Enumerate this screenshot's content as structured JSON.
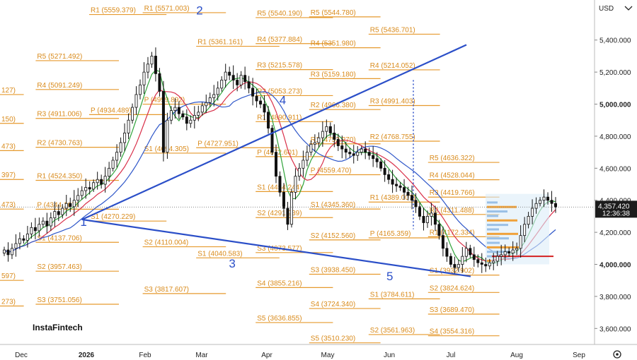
{
  "chart_data": {
    "type": "candlestick",
    "currency": "USD",
    "ylim": [
      3500,
      5650
    ],
    "y_ticks": [
      "3,600.000",
      "3,800.000",
      "4,000.000",
      "4,200.000",
      "4,400.000",
      "4,600.000",
      "4,800.000",
      "5,000.000",
      "5,200.000",
      "5,400.000"
    ],
    "x_ticks": [
      "Dec",
      "2026",
      "Feb",
      "Mar",
      "Apr",
      "May",
      "Jun",
      "Jul",
      "Aug",
      "Sep"
    ],
    "current_price": {
      "value": 4357.42,
      "label": "4,357.420",
      "countdown": "12:36:38"
    },
    "brand": "InstaFintech",
    "pivot_levels": [
      {
        "text": "127)",
        "price": 5060,
        "c0": 0.0,
        "c1": 0.04
      },
      {
        "text": "150)",
        "price": 4880,
        "c0": 0.0,
        "c1": 0.04
      },
      {
        "text": "473)",
        "price": 4710,
        "c0": 0.0,
        "c1": 0.04
      },
      {
        "text": "397)",
        "price": 4530,
        "c0": 0.0,
        "c1": 0.04
      },
      {
        "text": "473)",
        "price": 4345,
        "c0": 0.0,
        "c1": 0.04
      },
      {
        "text": "597)",
        "price": 3900,
        "c0": 0.0,
        "c1": 0.04
      },
      {
        "text": "273)",
        "price": 3740,
        "c0": 0.0,
        "c1": 0.04
      },
      {
        "text": "R5 (5271.492)",
        "price": 5271.492,
        "c0": 0.06,
        "c1": 0.2
      },
      {
        "text": "R4 (5091.249)",
        "price": 5091.249,
        "c0": 0.06,
        "c1": 0.2
      },
      {
        "text": "R3 (4911.006)",
        "price": 4911.006,
        "c0": 0.06,
        "c1": 0.2
      },
      {
        "text": "R2 (4730.763)",
        "price": 4730.763,
        "c0": 0.06,
        "c1": 0.2
      },
      {
        "text": "R1 (4524.350)",
        "price": 4524.35,
        "c0": 0.06,
        "c1": 0.2
      },
      {
        "text": "P (4344.107)",
        "price": 4344.107,
        "c0": 0.06,
        "c1": 0.2
      },
      {
        "text": "S1 (4137.706)",
        "price": 4137.706,
        "c0": 0.06,
        "c1": 0.2
      },
      {
        "text": "S2 (3957.463)",
        "price": 3957.463,
        "c0": 0.06,
        "c1": 0.2
      },
      {
        "text": "S3 (3751.056)",
        "price": 3751.056,
        "c0": 0.06,
        "c1": 0.2
      },
      {
        "text": "R1 (5559.379)",
        "price": 5559.379,
        "c0": 0.15,
        "c1": 0.28
      },
      {
        "text": "P (4934.489)",
        "price": 4934.489,
        "c0": 0.15,
        "c1": 0.28
      },
      {
        "text": "S1 (4270.229)",
        "price": 4270.229,
        "c0": 0.15,
        "c1": 0.28
      },
      {
        "text": "R1 (5571.003)",
        "price": 5571.003,
        "c0": 0.24,
        "c1": 0.38
      },
      {
        "text": "P (4999.892)",
        "price": 4999.892,
        "c0": 0.24,
        "c1": 0.38
      },
      {
        "text": "S1 (4694.305)",
        "price": 4694.305,
        "c0": 0.24,
        "c1": 0.38
      },
      {
        "text": "S2 (4110.004)",
        "price": 4110.004,
        "c0": 0.24,
        "c1": 0.38
      },
      {
        "text": "S3 (3817.607)",
        "price": 3817.607,
        "c0": 0.24,
        "c1": 0.38
      },
      {
        "text": "R1 (5361.161)",
        "price": 5361.161,
        "c0": 0.33,
        "c1": 0.47
      },
      {
        "text": "P (4727.951)",
        "price": 4727.951,
        "c0": 0.33,
        "c1": 0.47
      },
      {
        "text": "S1 (4040.583)",
        "price": 4040.583,
        "c0": 0.33,
        "c1": 0.47
      },
      {
        "text": "R5 (5540.190)",
        "price": 5540.19,
        "c0": 0.43,
        "c1": 0.56
      },
      {
        "text": "R4 (5377.884)",
        "price": 5377.884,
        "c0": 0.43,
        "c1": 0.56
      },
      {
        "text": "R3 (5215.578)",
        "price": 5215.578,
        "c0": 0.43,
        "c1": 0.56
      },
      {
        "text": "R2 (5053.273)",
        "price": 5053.273,
        "c0": 0.43,
        "c1": 0.56
      },
      {
        "text": "R1 (4890.911)",
        "price": 4890.911,
        "c0": 0.43,
        "c1": 0.56
      },
      {
        "text": "P (4672.601)",
        "price": 4672.601,
        "c0": 0.43,
        "c1": 0.56
      },
      {
        "text": "S1 (4454.244)",
        "price": 4454.244,
        "c0": 0.43,
        "c1": 0.56
      },
      {
        "text": "S2 (4291.939)",
        "price": 4291.939,
        "c0": 0.43,
        "c1": 0.56
      },
      {
        "text": "S3 (4073.577)",
        "price": 4073.577,
        "c0": 0.43,
        "c1": 0.56
      },
      {
        "text": "S4 (3855.216)",
        "price": 3855.216,
        "c0": 0.43,
        "c1": 0.56
      },
      {
        "text": "S5 (3636.855)",
        "price": 3636.855,
        "c0": 0.43,
        "c1": 0.56
      },
      {
        "text": "R5 (5544.780)",
        "price": 5544.78,
        "c0": 0.52,
        "c1": 0.64
      },
      {
        "text": "R4 (5351.980)",
        "price": 5351.98,
        "c0": 0.52,
        "c1": 0.64
      },
      {
        "text": "R3 (5159.180)",
        "price": 5159.18,
        "c0": 0.52,
        "c1": 0.64
      },
      {
        "text": "R2 (4966.380)",
        "price": 4966.38,
        "c0": 0.52,
        "c1": 0.64
      },
      {
        "text": "R1 (4752.270)",
        "price": 4752.27,
        "c0": 0.52,
        "c1": 0.64
      },
      {
        "text": "P (4559.470)",
        "price": 4559.47,
        "c0": 0.52,
        "c1": 0.64
      },
      {
        "text": "S1 (4345.360)",
        "price": 4345.36,
        "c0": 0.52,
        "c1": 0.64
      },
      {
        "text": "S2 (4152.560)",
        "price": 4152.56,
        "c0": 0.52,
        "c1": 0.64
      },
      {
        "text": "S3 (3938.450)",
        "price": 3938.45,
        "c0": 0.52,
        "c1": 0.64
      },
      {
        "text": "S4 (3724.340)",
        "price": 3724.34,
        "c0": 0.52,
        "c1": 0.64
      },
      {
        "text": "S5 (3510.230)",
        "price": 3510.23,
        "c0": 0.52,
        "c1": 0.64
      },
      {
        "text": "R5 (5436.701)",
        "price": 5436.701,
        "c0": 0.62,
        "c1": 0.74
      },
      {
        "text": "R4 (5214.052)",
        "price": 5214.052,
        "c0": 0.62,
        "c1": 0.74
      },
      {
        "text": "R3 (4991.403)",
        "price": 4991.403,
        "c0": 0.62,
        "c1": 0.74
      },
      {
        "text": "R2 (4768.755)",
        "price": 4768.755,
        "c0": 0.62,
        "c1": 0.74
      },
      {
        "text": "R1 (4389.007)",
        "price": 4389.007,
        "c0": 0.62,
        "c1": 0.74
      },
      {
        "text": "P (4165.359)",
        "price": 4165.359,
        "c0": 0.62,
        "c1": 0.74
      },
      {
        "text": "S1 (3784.611)",
        "price": 3784.611,
        "c0": 0.62,
        "c1": 0.74
      },
      {
        "text": "S2 (3561.963)",
        "price": 3561.963,
        "c0": 0.62,
        "c1": 0.74
      },
      {
        "text": "R5 (4636.322)",
        "price": 4636.322,
        "c0": 0.72,
        "c1": 0.84
      },
      {
        "text": "R4 (4528.044)",
        "price": 4528.044,
        "c0": 0.72,
        "c1": 0.84
      },
      {
        "text": "R3 (4419.766)",
        "price": 4419.766,
        "c0": 0.72,
        "c1": 0.84
      },
      {
        "text": "R2 (4311.488)",
        "price": 4311.488,
        "c0": 0.72,
        "c1": 0.84
      },
      {
        "text": "R1 (4172.334)",
        "price": 4172.334,
        "c0": 0.72,
        "c1": 0.84
      },
      {
        "text": "S1 (3932.902)",
        "price": 3932.902,
        "c0": 0.72,
        "c1": 0.84
      },
      {
        "text": "S2 (3824.624)",
        "price": 3824.624,
        "c0": 0.72,
        "c1": 0.84
      },
      {
        "text": "S3 (3689.470)",
        "price": 3689.47,
        "c0": 0.72,
        "c1": 0.84
      },
      {
        "text": "S4 (3554.316)",
        "price": 3554.316,
        "c0": 0.72,
        "c1": 0.84
      }
    ],
    "wave_labels": [
      {
        "text": "1",
        "x": 0.135,
        "price": 4240
      },
      {
        "text": "2",
        "x": 0.33,
        "price": 5560
      },
      {
        "text": "3",
        "x": 0.385,
        "price": 3980
      },
      {
        "text": "4",
        "x": 0.47,
        "price": 5000
      },
      {
        "text": "5",
        "x": 0.65,
        "price": 3900
      }
    ],
    "closes": [
      4090,
      4060,
      4100,
      4130,
      4160,
      4150,
      4190,
      4230,
      4210,
      4250,
      4270,
      4240,
      4290,
      4330,
      4310,
      4350,
      4380,
      4360,
      4400,
      4430,
      4460,
      4480,
      4470,
      4510,
      4530,
      4500,
      4550,
      4600,
      4650,
      4700,
      4760,
      4820,
      4900,
      4980,
      5060,
      5120,
      5200,
      5250,
      5300,
      5190,
      5080,
      4700,
      4900,
      4960,
      4980,
      4940,
      4920,
      4880,
      4900,
      4930,
      4950,
      4990,
      5010,
      5040,
      5060,
      5100,
      5150,
      5200,
      5180,
      5150,
      5120,
      5180,
      5140,
      5100,
      5050,
      5020,
      5000,
      4950,
      4850,
      4700,
      4550,
      4450,
      4350,
      4250,
      4450,
      4550,
      4600,
      4650,
      4700,
      4750,
      4760,
      4790,
      4830,
      4860,
      4820,
      4780,
      4740,
      4720,
      4700,
      4690,
      4680,
      4700,
      4720,
      4700,
      4680,
      4660,
      4640,
      4600,
      4560,
      4530,
      4500,
      4490,
      4480,
      4450,
      4430,
      4400,
      4360,
      4300,
      4260,
      4300,
      4320,
      4250,
      4180,
      4100,
      4050,
      4000,
      3980,
      4000,
      4050,
      4100,
      4060,
      4030,
      4010,
      4000,
      3990,
      4010,
      4020,
      4050,
      4060,
      4080,
      4070,
      4090,
      4100,
      4180,
      4250,
      4300,
      4350,
      4380,
      4400,
      4420,
      4400,
      4380,
      4357
    ]
  }
}
